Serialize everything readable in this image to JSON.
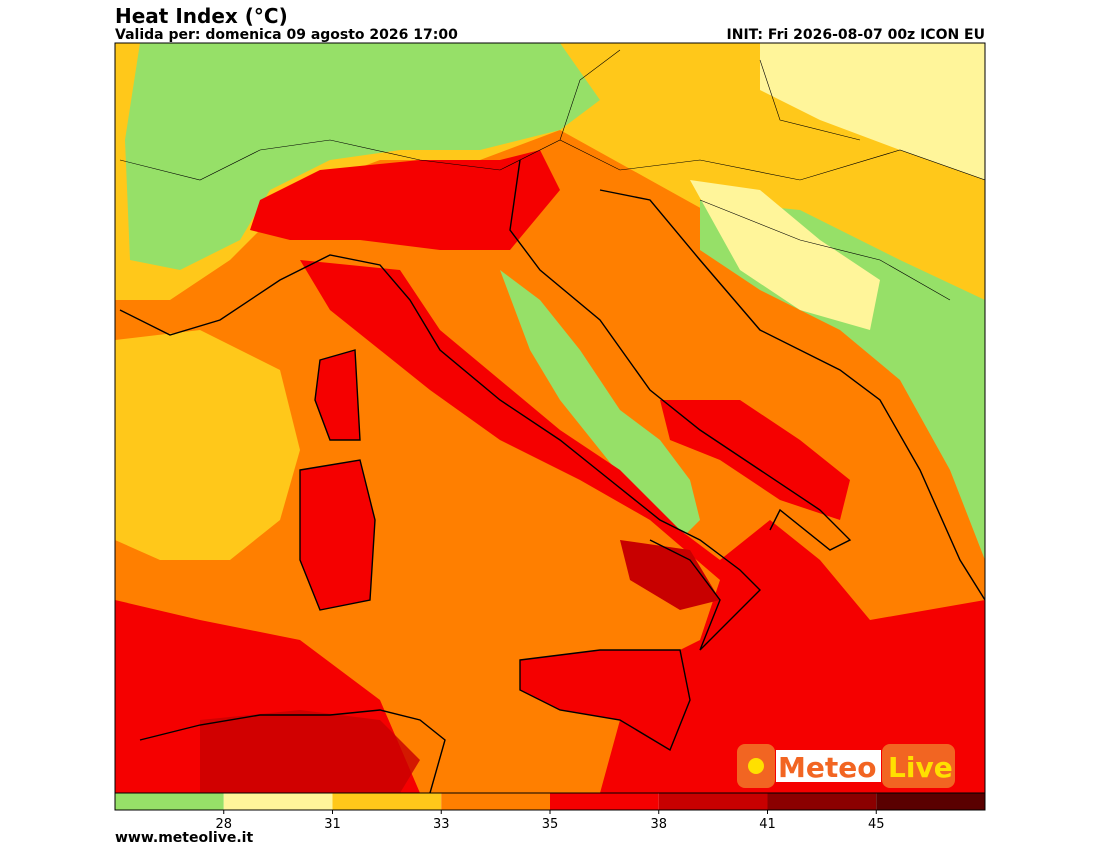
{
  "header": {
    "title": "Heat Index (°C)",
    "valid": "Valida per: domenica 09 agosto 2026 17:00",
    "init": "INIT: Fri 2026-08-07 00z ICON EU"
  },
  "legend": {
    "colors": [
      "#96e068",
      "#fff59a",
      "#ffc81a",
      "#ff7f00",
      "#f50000",
      "#c80000",
      "#8b0000",
      "#5a0000"
    ],
    "ticks": [
      28,
      31,
      33,
      35,
      38,
      41,
      45
    ]
  },
  "logo": {
    "a": "Meteo",
    "b": "Live"
  },
  "footer": {
    "url": "www.meteolive.it"
  }
}
